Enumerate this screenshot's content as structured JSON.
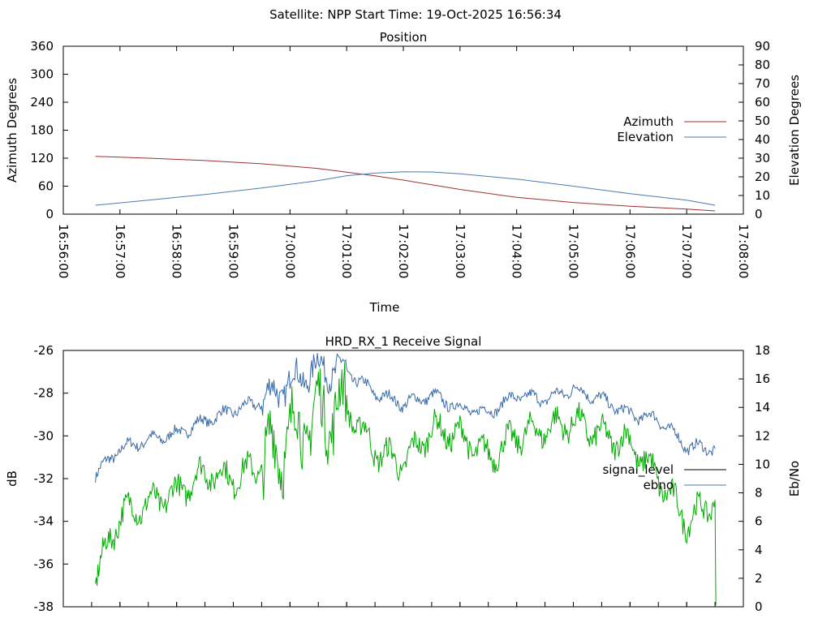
{
  "header": "Satellite: NPP    Start Time: 19-Oct-2025 16:56:34",
  "chart_data": [
    {
      "type": "line",
      "title": "Position",
      "xlabel": "Time",
      "ylabel": "Azimuth Degrees",
      "y2label": "Elevation Degrees",
      "ylim": [
        0,
        360
      ],
      "y2lim": [
        0,
        90
      ],
      "xlim": [
        "16:56:00",
        "17:08:00"
      ],
      "yticks": [
        "0",
        "60",
        "120",
        "180",
        "240",
        "300",
        "360"
      ],
      "y2ticks": [
        "0",
        "10",
        "20",
        "30",
        "40",
        "50",
        "60",
        "70",
        "80",
        "90"
      ],
      "xticks": [
        "16:56:00",
        "16:57:00",
        "16:58:00",
        "16:59:00",
        "17:00:00",
        "17:01:00",
        "17:02:00",
        "17:03:00",
        "17:04:00",
        "17:05:00",
        "17:06:00",
        "17:07:00",
        "17:08:00"
      ],
      "legend_position": "right",
      "series": [
        {
          "name": "Azimuth",
          "axis": "left",
          "color": "#a03030",
          "x": [
            "16:56:34",
            "16:57:30",
            "16:58:30",
            "16:59:30",
            "17:00:30",
            "17:01:00",
            "17:01:30",
            "17:02:00",
            "17:02:30",
            "17:03:00",
            "17:04:00",
            "17:05:00",
            "17:06:00",
            "17:07:00",
            "17:07:30"
          ],
          "values": [
            124,
            120,
            115,
            108,
            98,
            90,
            82,
            73,
            63,
            53,
            36,
            25,
            17,
            11,
            7
          ]
        },
        {
          "name": "Elevation",
          "axis": "right",
          "color": "#4a7ab0",
          "x": [
            "16:56:34",
            "16:57:30",
            "16:58:30",
            "16:59:30",
            "17:00:30",
            "17:01:00",
            "17:01:30",
            "17:02:00",
            "17:02:30",
            "17:03:00",
            "17:04:00",
            "17:05:00",
            "17:06:00",
            "17:07:00",
            "17:07:30"
          ],
          "values": [
            4.8,
            7.5,
            10.5,
            14.0,
            18.0,
            20.6,
            22.0,
            22.7,
            22.6,
            21.6,
            18.8,
            15.0,
            11.0,
            7.5,
            4.8
          ]
        }
      ]
    },
    {
      "type": "line",
      "title": "HRD_RX_1 Receive Signal",
      "ylabel": "dB",
      "y2label": "Eb/No",
      "ylim": [
        -38,
        -26
      ],
      "y2lim": [
        0,
        18
      ],
      "xlim": [
        "16:56:00",
        "17:08:00"
      ],
      "yticks": [
        "-38",
        "-36",
        "-34",
        "-32",
        "-30",
        "-28",
        "-26"
      ],
      "y2ticks": [
        "0",
        "2",
        "4",
        "6",
        "8",
        "10",
        "12",
        "14",
        "16",
        "18"
      ],
      "legend_position": "right",
      "series": [
        {
          "name": "signal_level",
          "axis": "left",
          "color": "#000000",
          "legend_color": "#000000",
          "draw_color": "#3a6aa8",
          "x": [
            "16:56:34",
            "16:57:00",
            "16:57:30",
            "16:58:00",
            "16:58:30",
            "16:59:00",
            "16:59:30",
            "17:00:00",
            "17:00:30",
            "17:01:00",
            "17:01:30",
            "17:02:00",
            "17:02:30",
            "17:03:00",
            "17:03:30",
            "17:04:00",
            "17:04:30",
            "17:05:00",
            "17:05:30",
            "17:06:00",
            "17:06:30",
            "17:07:00",
            "17:07:30"
          ],
          "values": [
            -31.8,
            -30.6,
            -30.2,
            -29.9,
            -29.3,
            -28.8,
            -28.4,
            -27.5,
            -26.8,
            -27.0,
            -28.0,
            -28.5,
            -28.1,
            -28.7,
            -28.9,
            -28.1,
            -28.3,
            -27.8,
            -28.3,
            -29.0,
            -29.2,
            -30.5,
            -30.6
          ]
        },
        {
          "name": "ebno",
          "axis": "right",
          "color": "#4a7ab0",
          "legend_color": "#4a7ab0",
          "draw_color": "#00aa00",
          "x": [
            "16:56:34",
            "16:57:00",
            "16:57:30",
            "16:58:00",
            "16:58:30",
            "16:59:00",
            "16:59:30",
            "17:00:00",
            "17:00:30",
            "17:01:00",
            "17:01:30",
            "17:02:00",
            "17:02:30",
            "17:03:00",
            "17:03:30",
            "17:04:00",
            "17:04:30",
            "17:05:00",
            "17:05:30",
            "17:06:00",
            "17:06:30",
            "17:07:00",
            "17:07:30"
          ],
          "values": [
            2.0,
            6.5,
            7.2,
            8.0,
            9.5,
            9.0,
            10.0,
            12.0,
            13.5,
            14.0,
            11.0,
            10.0,
            12.5,
            12.0,
            10.5,
            12.0,
            12.5,
            13.0,
            12.0,
            11.5,
            9.0,
            6.0,
            7.5
          ]
        }
      ]
    }
  ]
}
